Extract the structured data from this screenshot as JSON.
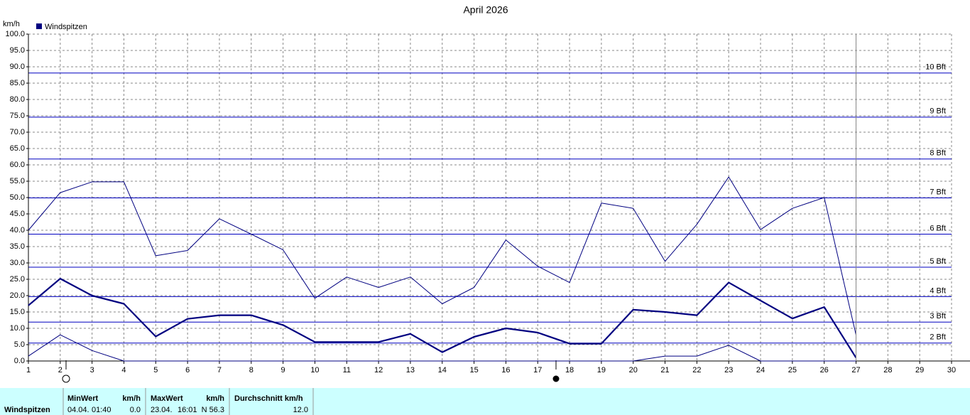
{
  "chart_data": {
    "type": "line",
    "title": "April 2026",
    "ylabel": "km/h",
    "x": [
      1,
      2,
      3,
      4,
      5,
      6,
      7,
      8,
      9,
      10,
      11,
      12,
      13,
      14,
      15,
      16,
      17,
      18,
      19,
      20,
      21,
      22,
      23,
      24,
      25,
      26,
      27,
      28,
      29,
      30
    ],
    "xlim": [
      1,
      30
    ],
    "xticks": [
      1,
      2,
      3,
      4,
      5,
      6,
      7,
      8,
      9,
      10,
      11,
      12,
      13,
      14,
      15,
      16,
      17,
      18,
      19,
      20,
      21,
      22,
      23,
      24,
      25,
      26,
      27,
      28,
      29,
      30
    ],
    "ylim": [
      0,
      100
    ],
    "yticks": [
      {
        "value": 0,
        "label": "0.0"
      },
      {
        "value": 5,
        "label": "5.0"
      },
      {
        "value": 10,
        "label": "10.0"
      },
      {
        "value": 15,
        "label": "15.0"
      },
      {
        "value": 20,
        "label": "20.0"
      },
      {
        "value": 25,
        "label": "25.0"
      },
      {
        "value": 30,
        "label": "30.0"
      },
      {
        "value": 35,
        "label": "35.0"
      },
      {
        "value": 40,
        "label": "40.0"
      },
      {
        "value": 45,
        "label": "45.0"
      },
      {
        "value": 50,
        "label": "50.0"
      },
      {
        "value": 55,
        "label": "55.0"
      },
      {
        "value": 60,
        "label": "60.0"
      },
      {
        "value": 65,
        "label": "65.0"
      },
      {
        "value": 70,
        "label": "70.0"
      },
      {
        "value": 75,
        "label": "75.0"
      },
      {
        "value": 80,
        "label": "80.0"
      },
      {
        "value": 85,
        "label": "85.0"
      },
      {
        "value": 90,
        "label": "90.0"
      },
      {
        "value": 95,
        "label": "95.0"
      },
      {
        "value": 100,
        "label": "100.0"
      }
    ],
    "grid": true,
    "legend": "top-left",
    "series": [
      {
        "name": "Windspitzen",
        "color": "#000080",
        "line_width": 1,
        "values": [
          40,
          51.5,
          54.8,
          54.8,
          32.2,
          33.8,
          43.5,
          38.8,
          34,
          19.2,
          25.7,
          22.5,
          25.7,
          17.5,
          22.5,
          37,
          29,
          24,
          48.3,
          46.7,
          30.5,
          41.8,
          56.3,
          40.2,
          46.7,
          50,
          8,
          null,
          null,
          null
        ]
      },
      {
        "color": "#000080",
        "line_width": 2.2,
        "values": [
          17,
          25.2,
          20,
          17.5,
          7.5,
          12.9,
          14,
          14,
          11,
          5.8,
          5.8,
          5.8,
          8.3,
          2.7,
          7.4,
          10,
          8.7,
          5.3,
          5.3,
          15.7,
          15,
          14,
          24,
          18.5,
          13,
          16.5,
          1,
          null,
          null,
          null
        ]
      },
      {
        "color": "#000080",
        "line_width": 1,
        "values": [
          1.5,
          8,
          3.2,
          0,
          0,
          0,
          0,
          0,
          0,
          0,
          0,
          0,
          0,
          0,
          0,
          0,
          0,
          0,
          0,
          0,
          1.5,
          1.5,
          4.8,
          0,
          0,
          0,
          0,
          null,
          null,
          null
        ]
      }
    ],
    "reference_lines": {
      "color": "#0000c0",
      "lines": [
        {
          "value": 5.5,
          "label": "2 Bft"
        },
        {
          "value": 11.9,
          "label": "3 Bft"
        },
        {
          "value": 19.7,
          "label": "4 Bft"
        },
        {
          "value": 28.7,
          "label": "5 Bft"
        },
        {
          "value": 38.8,
          "label": "6 Bft"
        },
        {
          "value": 49.9,
          "label": "7 Bft"
        },
        {
          "value": 61.8,
          "label": "8 Bft"
        },
        {
          "value": 74.6,
          "label": "9 Bft"
        },
        {
          "value": 88.1,
          "label": "10 Bft"
        }
      ]
    }
  },
  "stats": {
    "row_label": "Windspitzen",
    "min": {
      "header": "MinWert",
      "unit": "km/h",
      "date": "04.04.",
      "time": "01:40",
      "value": "0.0"
    },
    "max": {
      "header": "MaxWert",
      "unit": "km/h",
      "date": "23.04.",
      "time": "16:01",
      "value": "N 56.3"
    },
    "avg": {
      "header": "Durchschnitt km/h",
      "value": "12.0"
    }
  }
}
